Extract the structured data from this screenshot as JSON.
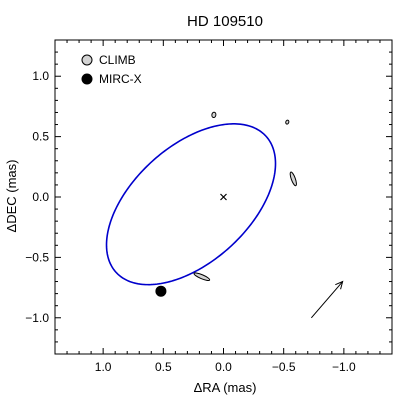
{
  "chart_data": {
    "type": "scatter",
    "title": "HD 109510",
    "xlabel": "ΔRA (mas)",
    "ylabel": "ΔDEC (mas)",
    "xlim": [
      1.4,
      -1.4
    ],
    "ylim": [
      -1.3,
      1.3
    ],
    "x_ticks": [
      1.0,
      0.5,
      0.0,
      -0.5,
      -1.0
    ],
    "x_tick_labels": [
      "1.0",
      "0.5",
      "0.0",
      "−0.5",
      "−1.0"
    ],
    "y_ticks": [
      1.0,
      0.5,
      0.0,
      -0.5,
      -1.0
    ],
    "y_tick_labels": [
      "1.0",
      "0.5",
      "0.0",
      "−0.5",
      "−1.0"
    ],
    "legend": {
      "placement": "top-left",
      "entries": [
        {
          "label": "CLIMB",
          "marker": "open-circle",
          "fill": "#d3d3d3"
        },
        {
          "label": "MIRC-X",
          "marker": "filled-circle",
          "fill": "#000000"
        }
      ]
    },
    "orbit": {
      "color": "#0000cc",
      "center": [
        0.27,
        -0.06
      ],
      "semi_major": 0.84,
      "semi_minor": 0.48,
      "angle_deg": 42
    },
    "primary": {
      "x": 0.0,
      "y": 0.0,
      "marker": "x"
    },
    "climb_points": [
      {
        "x": 0.08,
        "y": 0.68,
        "rx": 0.045,
        "ry": 0.022,
        "angle_deg": -10
      },
      {
        "x": -0.53,
        "y": 0.62,
        "rx": 0.03,
        "ry": 0.012,
        "angle_deg": 70
      },
      {
        "x": -0.58,
        "y": 0.15,
        "rx": 0.14,
        "ry": 0.06,
        "angle_deg": 20
      },
      {
        "x": 0.18,
        "y": -0.66,
        "rx": 0.26,
        "ry": 0.07,
        "angle_deg": 67
      }
    ],
    "mirc_x_points": [
      {
        "x": 0.52,
        "y": -0.78
      }
    ],
    "arrow": {
      "from": [
        -0.73,
        -1.0
      ],
      "to": [
        -0.99,
        -0.7
      ]
    },
    "colors": {
      "climb_fill": "#d3d3d3",
      "mirc_x_fill": "#000000",
      "orbit": "#0000cc"
    }
  }
}
